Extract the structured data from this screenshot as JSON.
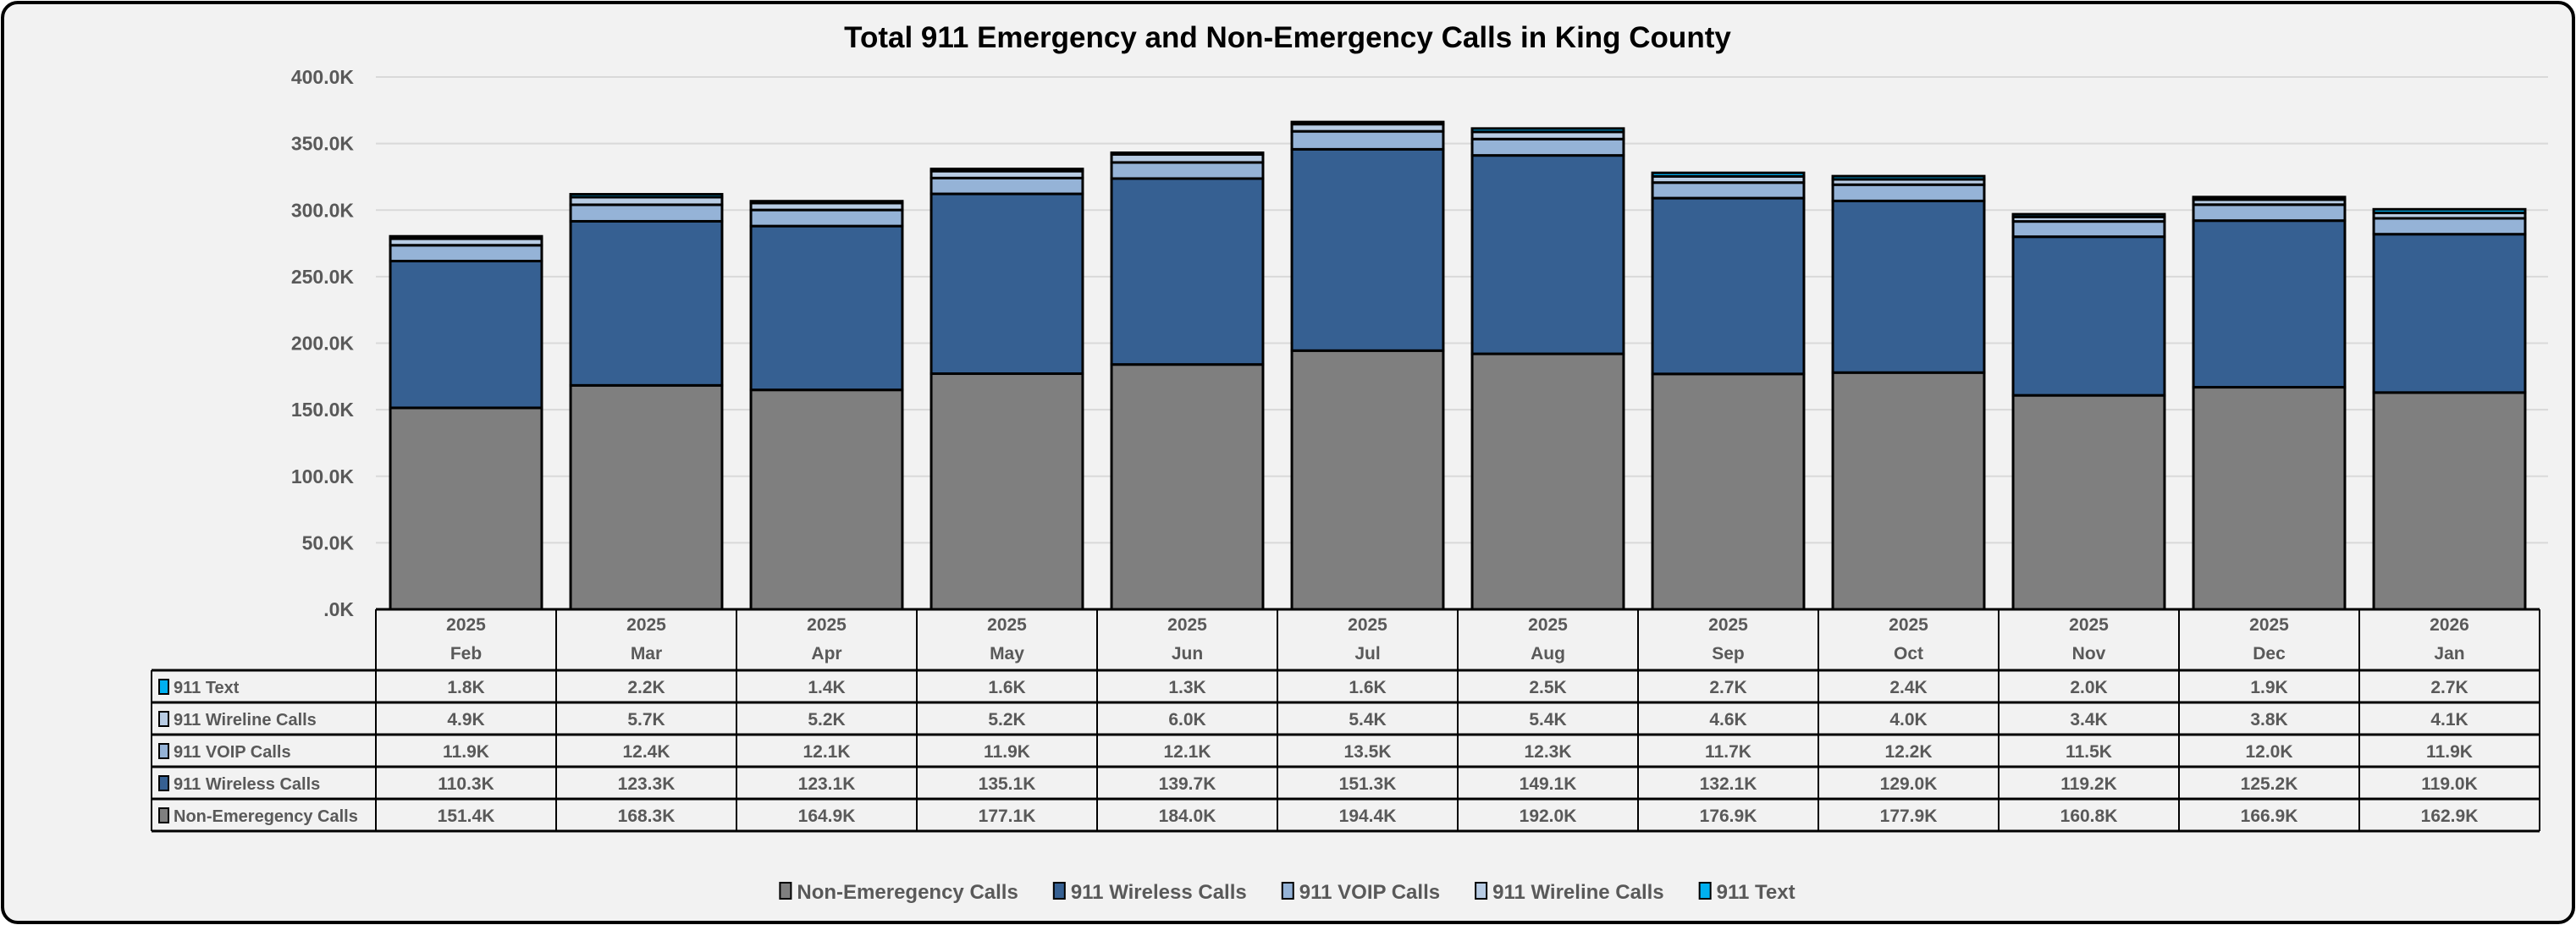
{
  "chart_data": {
    "type": "bar",
    "stacked": true,
    "title": "Total 911 Emergency and Non-Emergency Calls in King County",
    "xlabel": "",
    "ylabel": "",
    "ylim": [
      0,
      400000
    ],
    "yticks": [
      ".0K",
      "50.0K",
      "100.0K",
      "150.0K",
      "200.0K",
      "250.0K",
      "300.0K",
      "350.0K",
      "400.0K"
    ],
    "ytick_values": [
      0,
      50000,
      100000,
      150000,
      200000,
      250000,
      300000,
      350000,
      400000
    ],
    "grid": true,
    "legend_placement": "bottom",
    "data_table": true,
    "categories": [
      {
        "year": "2025",
        "month": "Feb"
      },
      {
        "year": "2025",
        "month": "Mar"
      },
      {
        "year": "2025",
        "month": "Apr"
      },
      {
        "year": "2025",
        "month": "May"
      },
      {
        "year": "2025",
        "month": "Jun"
      },
      {
        "year": "2025",
        "month": "Jul"
      },
      {
        "year": "2025",
        "month": "Aug"
      },
      {
        "year": "2025",
        "month": "Sep"
      },
      {
        "year": "2025",
        "month": "Oct"
      },
      {
        "year": "2025",
        "month": "Nov"
      },
      {
        "year": "2025",
        "month": "Dec"
      },
      {
        "year": "2026",
        "month": "Jan"
      }
    ],
    "series": [
      {
        "name": "Non-Emeregency Calls",
        "color": "#7f7f7f",
        "values": [
          151.4,
          168.3,
          164.9,
          177.1,
          184.0,
          194.4,
          192.0,
          176.9,
          177.9,
          160.8,
          166.9,
          162.9
        ],
        "labels": [
          "151.4K",
          "168.3K",
          "164.9K",
          "177.1K",
          "184.0K",
          "194.4K",
          "192.0K",
          "176.9K",
          "177.9K",
          "160.8K",
          "166.9K",
          "162.9K"
        ]
      },
      {
        "name": "911 Wireless Calls",
        "color": "#366092",
        "values": [
          110.3,
          123.3,
          123.1,
          135.1,
          139.7,
          151.3,
          149.1,
          132.1,
          129.0,
          119.2,
          125.2,
          119.0
        ],
        "labels": [
          "110.3K",
          "123.3K",
          "123.1K",
          "135.1K",
          "139.7K",
          "151.3K",
          "149.1K",
          "132.1K",
          "129.0K",
          "119.2K",
          "125.2K",
          "119.0K"
        ]
      },
      {
        "name": "911 VOIP Calls",
        "color": "#95b3d7",
        "values": [
          11.9,
          12.4,
          12.1,
          11.9,
          12.1,
          13.5,
          12.3,
          11.7,
          12.2,
          11.5,
          12.0,
          11.9
        ],
        "labels": [
          "11.9K",
          "12.4K",
          "12.1K",
          "11.9K",
          "12.1K",
          "13.5K",
          "12.3K",
          "11.7K",
          "12.2K",
          "11.5K",
          "12.0K",
          "11.9K"
        ]
      },
      {
        "name": "911 Wireline Calls",
        "color": "#b8cce4",
        "values": [
          4.9,
          5.7,
          5.2,
          5.2,
          6.0,
          5.4,
          5.4,
          4.6,
          4.0,
          3.4,
          3.8,
          4.1
        ],
        "labels": [
          "4.9K",
          "5.7K",
          "5.2K",
          "5.2K",
          "6.0K",
          "5.4K",
          "5.4K",
          "4.6K",
          "4.0K",
          "3.4K",
          "3.8K",
          "4.1K"
        ]
      },
      {
        "name": "911 Text",
        "color": "#00b0f0",
        "values": [
          1.8,
          2.2,
          1.4,
          1.6,
          1.3,
          1.6,
          2.5,
          2.7,
          2.4,
          2.0,
          1.9,
          2.7
        ],
        "labels": [
          "1.8K",
          "2.2K",
          "1.4K",
          "1.6K",
          "1.3K",
          "1.6K",
          "2.5K",
          "2.7K",
          "2.4K",
          "2.0K",
          "1.9K",
          "2.7K"
        ]
      }
    ],
    "value_unit": "thousands of calls"
  },
  "colors": {
    "background": "#f2f2f2",
    "text": "#595959",
    "grid": "#d9d9d9",
    "border": "#000000"
  }
}
